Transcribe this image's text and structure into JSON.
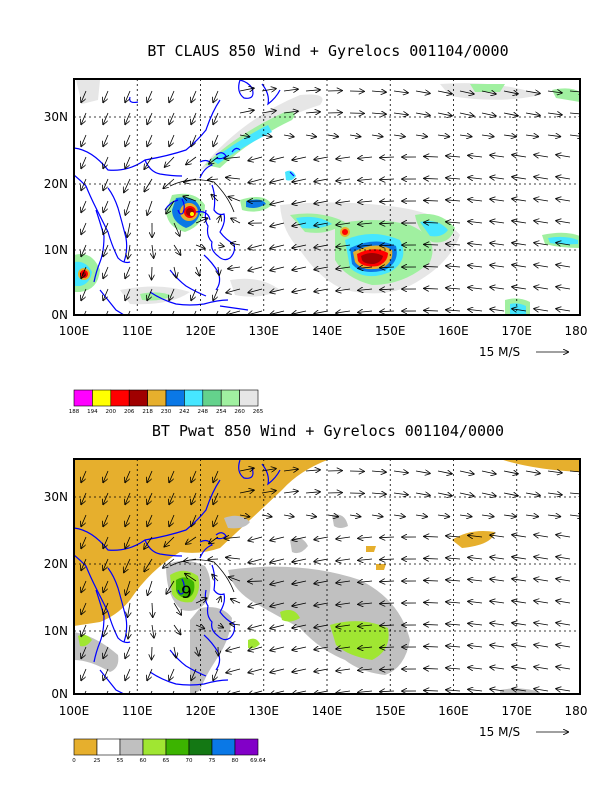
{
  "panels": [
    {
      "title": "BT CLAUS 850 Wind + Gyrelocs 001104/0000",
      "x_ticks": [
        "100E",
        "110E",
        "120E",
        "130E",
        "140E",
        "150E",
        "160E",
        "170E",
        "180"
      ],
      "y_ticks": [
        "30N",
        "20N",
        "10N",
        "0N"
      ],
      "ref_vector": "15 M/S",
      "legend_labels": [
        "188",
        "194",
        "200",
        "206",
        "218",
        "230",
        "242",
        "248",
        "254",
        "260",
        "265"
      ],
      "legend_colors": [
        "#ff00ff",
        "#ffff00",
        "#ff0000",
        "#a00000",
        "#e6af2d",
        "#0a78e6",
        "#46e6ff",
        "#64d28c",
        "#a0f0a0",
        "#e6e6e6"
      ]
    },
    {
      "title": "BT Pwat 850 Wind + Gyrelocs 001104/0000",
      "x_ticks": [
        "100E",
        "110E",
        "120E",
        "130E",
        "140E",
        "150E",
        "160E",
        "170E",
        "180"
      ],
      "y_ticks": [
        "30N",
        "20N",
        "10N",
        "0N"
      ],
      "ref_vector": "15 M/S",
      "legend_labels": [
        "0",
        "25",
        "55",
        "60",
        "65",
        "70",
        "75",
        "80",
        "69.64"
      ],
      "legend_colors": [
        "#e6af2d",
        "#ffffff",
        "#c0c0c0",
        "#a0e632",
        "#3cb400",
        "#147814",
        "#0a78e6",
        "#8200c8"
      ],
      "gyre_label": "9"
    }
  ]
}
